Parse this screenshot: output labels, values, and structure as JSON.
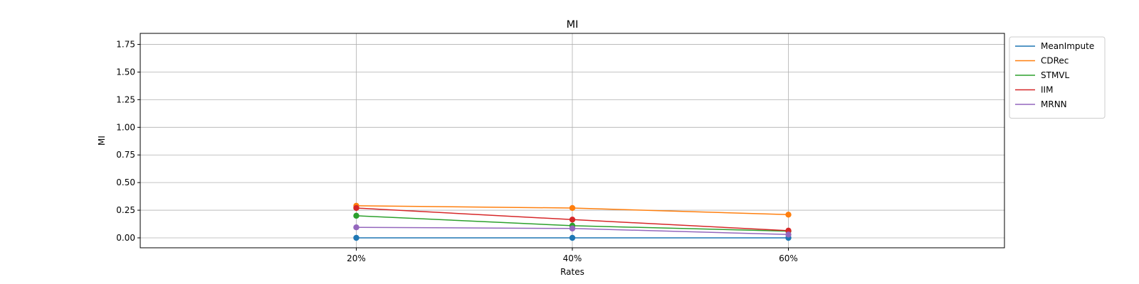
{
  "chart_data": {
    "type": "line",
    "title": "MI",
    "xlabel": "Rates",
    "ylabel": "MI",
    "categories": [
      "20%",
      "40%",
      "60%"
    ],
    "xlim": [
      -1,
      3
    ],
    "ylim": [
      -0.09,
      1.85
    ],
    "yticks": [
      "0.00",
      "0.25",
      "0.50",
      "0.75",
      "1.00",
      "1.25",
      "1.50",
      "1.75"
    ],
    "ytick_values": [
      0,
      0.25,
      0.5,
      0.75,
      1.0,
      1.25,
      1.5,
      1.75
    ],
    "grid": true,
    "legend_position": "outside-top-right",
    "series": [
      {
        "name": "MeanImpute",
        "color": "#1f77b4",
        "values": [
          0.0,
          0.0,
          0.0
        ]
      },
      {
        "name": "CDRec",
        "color": "#ff7f0e",
        "values": [
          0.29,
          0.27,
          0.21
        ]
      },
      {
        "name": "STMVL",
        "color": "#2ca02c",
        "values": [
          0.2,
          0.11,
          0.06
        ]
      },
      {
        "name": "IIM",
        "color": "#d62728",
        "values": [
          0.27,
          0.165,
          0.065
        ]
      },
      {
        "name": "MRNN",
        "color": "#9467bd",
        "values": [
          0.095,
          0.085,
          0.03
        ]
      }
    ]
  }
}
